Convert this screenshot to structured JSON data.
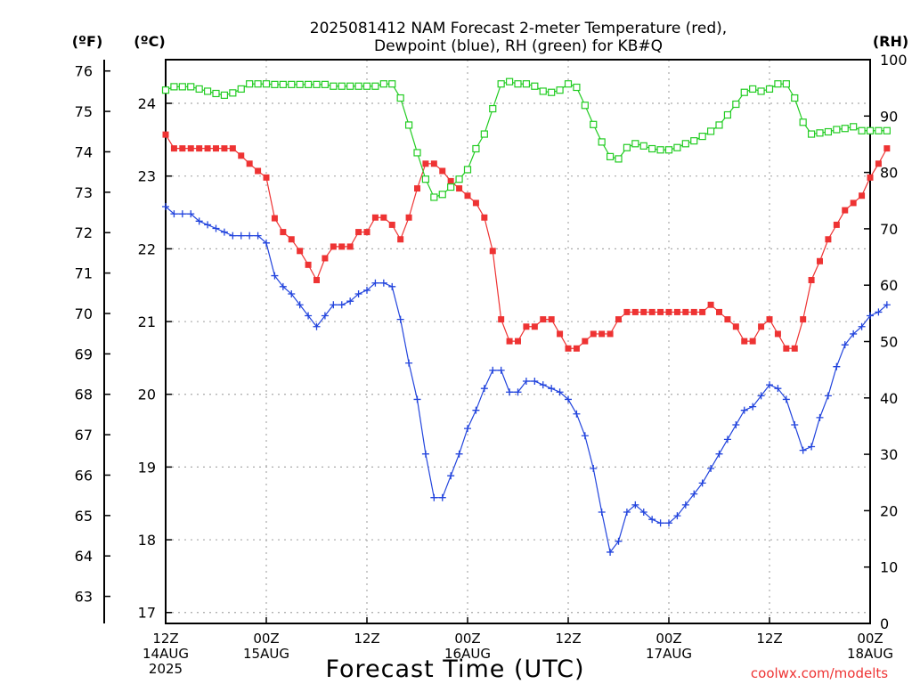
{
  "chart_data": {
    "type": "line",
    "title_line1": "2025081412 NAM Forecast 2-meter Temperature (red),",
    "title_line2": "Dewpoint (blue), RH (green) for KB#Q",
    "xlabel": "Forecast Time (UTC)",
    "credit": "coolwx.com/modelts",
    "x_unit": "forecast hour",
    "xlim": [
      0,
      84
    ],
    "x_ticks": [
      {
        "hour": 0,
        "line1": "12Z",
        "line2": "14AUG",
        "line3": "2025"
      },
      {
        "hour": 12,
        "line1": "00Z",
        "line2": "15AUG",
        "line3": ""
      },
      {
        "hour": 24,
        "line1": "12Z",
        "line2": "",
        "line3": ""
      },
      {
        "hour": 36,
        "line1": "00Z",
        "line2": "16AUG",
        "line3": ""
      },
      {
        "hour": 48,
        "line1": "12Z",
        "line2": "",
        "line3": ""
      },
      {
        "hour": 60,
        "line1": "00Z",
        "line2": "17AUG",
        "line3": ""
      },
      {
        "hour": 72,
        "line1": "12Z",
        "line2": "",
        "line3": ""
      },
      {
        "hour": 84,
        "line1": "00Z",
        "line2": "18AUG",
        "line3": ""
      }
    ],
    "axes": {
      "fahrenheit": {
        "label": "(ºF)",
        "ticks": [
          63,
          64,
          65,
          66,
          67,
          68,
          69,
          70,
          71,
          72,
          73,
          74,
          75,
          76
        ]
      },
      "celsius": {
        "label": "(ºC)",
        "ylim": [
          16.85,
          24.6
        ],
        "ticks": [
          17,
          18,
          19,
          20,
          21,
          22,
          23,
          24
        ]
      },
      "rh": {
        "label": "(RH)",
        "ylim": [
          0,
          100
        ],
        "ticks": [
          0,
          10,
          20,
          30,
          40,
          50,
          60,
          70,
          80,
          90,
          100
        ]
      }
    },
    "grid": true,
    "series": [
      {
        "name": "Temperature",
        "color": "#ee3333",
        "marker": "filled-square",
        "axis": "celsius",
        "values": [
          [
            0,
            23.57
          ],
          [
            1,
            23.38
          ],
          [
            2,
            23.38
          ],
          [
            3,
            23.38
          ],
          [
            4,
            23.38
          ],
          [
            5,
            23.38
          ],
          [
            6,
            23.38
          ],
          [
            7,
            23.38
          ],
          [
            8,
            23.38
          ],
          [
            9,
            23.28
          ],
          [
            10,
            23.17
          ],
          [
            11,
            23.07
          ],
          [
            12,
            22.98
          ],
          [
            13,
            22.42
          ],
          [
            14,
            22.23
          ],
          [
            15,
            22.13
          ],
          [
            16,
            21.97
          ],
          [
            17,
            21.78
          ],
          [
            18,
            21.57
          ],
          [
            19,
            21.87
          ],
          [
            20,
            22.03
          ],
          [
            21,
            22.03
          ],
          [
            22,
            22.03
          ],
          [
            23,
            22.23
          ],
          [
            24,
            22.23
          ],
          [
            25,
            22.43
          ],
          [
            26,
            22.43
          ],
          [
            27,
            22.33
          ],
          [
            28,
            22.13
          ],
          [
            29,
            22.43
          ],
          [
            30,
            22.83
          ],
          [
            31,
            23.17
          ],
          [
            32,
            23.17
          ],
          [
            33,
            23.07
          ],
          [
            34,
            22.93
          ],
          [
            35,
            22.83
          ],
          [
            36,
            22.73
          ],
          [
            37,
            22.63
          ],
          [
            38,
            22.43
          ],
          [
            39,
            21.97
          ],
          [
            40,
            21.03
          ],
          [
            41,
            20.73
          ],
          [
            42,
            20.73
          ],
          [
            43,
            20.93
          ],
          [
            44,
            20.93
          ],
          [
            45,
            21.03
          ],
          [
            46,
            21.03
          ],
          [
            47,
            20.83
          ],
          [
            48,
            20.63
          ],
          [
            49,
            20.63
          ],
          [
            50,
            20.73
          ],
          [
            51,
            20.83
          ],
          [
            52,
            20.83
          ],
          [
            53,
            20.83
          ],
          [
            54,
            21.03
          ],
          [
            55,
            21.13
          ],
          [
            56,
            21.13
          ],
          [
            57,
            21.13
          ],
          [
            58,
            21.13
          ],
          [
            59,
            21.13
          ],
          [
            60,
            21.13
          ],
          [
            61,
            21.13
          ],
          [
            62,
            21.13
          ],
          [
            63,
            21.13
          ],
          [
            64,
            21.13
          ],
          [
            65,
            21.23
          ],
          [
            66,
            21.13
          ],
          [
            67,
            21.03
          ],
          [
            68,
            20.93
          ],
          [
            69,
            20.73
          ],
          [
            70,
            20.73
          ],
          [
            71,
            20.93
          ],
          [
            72,
            21.03
          ],
          [
            73,
            20.83
          ],
          [
            74,
            20.63
          ],
          [
            75,
            20.63
          ],
          [
            76,
            21.03
          ],
          [
            77,
            21.57
          ],
          [
            78,
            21.83
          ],
          [
            79,
            22.13
          ],
          [
            80,
            22.33
          ],
          [
            81,
            22.53
          ],
          [
            82,
            22.63
          ],
          [
            83,
            22.73
          ],
          [
            84,
            22.98
          ],
          [
            85,
            23.17
          ],
          [
            86,
            23.38
          ]
        ]
      },
      {
        "name": "Dewpoint",
        "color": "#2244dd",
        "marker": "plus",
        "axis": "celsius",
        "values": [
          [
            0,
            22.58
          ],
          [
            1,
            22.48
          ],
          [
            2,
            22.48
          ],
          [
            3,
            22.48
          ],
          [
            4,
            22.38
          ],
          [
            5,
            22.33
          ],
          [
            6,
            22.28
          ],
          [
            7,
            22.23
          ],
          [
            8,
            22.18
          ],
          [
            9,
            22.18
          ],
          [
            10,
            22.18
          ],
          [
            11,
            22.18
          ],
          [
            12,
            22.08
          ],
          [
            13,
            21.63
          ],
          [
            14,
            21.48
          ],
          [
            15,
            21.38
          ],
          [
            16,
            21.23
          ],
          [
            17,
            21.08
          ],
          [
            18,
            20.93
          ],
          [
            19,
            21.08
          ],
          [
            20,
            21.23
          ],
          [
            21,
            21.23
          ],
          [
            22,
            21.28
          ],
          [
            23,
            21.38
          ],
          [
            24,
            21.43
          ],
          [
            25,
            21.53
          ],
          [
            26,
            21.53
          ],
          [
            27,
            21.48
          ],
          [
            28,
            21.03
          ],
          [
            29,
            20.43
          ],
          [
            30,
            19.93
          ],
          [
            31,
            19.18
          ],
          [
            32,
            18.58
          ],
          [
            33,
            18.58
          ],
          [
            34,
            18.88
          ],
          [
            35,
            19.18
          ],
          [
            36,
            19.53
          ],
          [
            37,
            19.78
          ],
          [
            38,
            20.08
          ],
          [
            39,
            20.33
          ],
          [
            40,
            20.33
          ],
          [
            41,
            20.03
          ],
          [
            42,
            20.03
          ],
          [
            43,
            20.18
          ],
          [
            44,
            20.18
          ],
          [
            45,
            20.13
          ],
          [
            46,
            20.08
          ],
          [
            47,
            20.03
          ],
          [
            48,
            19.93
          ],
          [
            49,
            19.73
          ],
          [
            50,
            19.43
          ],
          [
            51,
            18.98
          ],
          [
            52,
            18.38
          ],
          [
            53,
            17.83
          ],
          [
            54,
            17.98
          ],
          [
            55,
            18.38
          ],
          [
            56,
            18.48
          ],
          [
            57,
            18.38
          ],
          [
            58,
            18.28
          ],
          [
            59,
            18.23
          ],
          [
            60,
            18.23
          ],
          [
            61,
            18.33
          ],
          [
            62,
            18.48
          ],
          [
            63,
            18.63
          ],
          [
            64,
            18.78
          ],
          [
            65,
            18.98
          ],
          [
            66,
            19.18
          ],
          [
            67,
            19.38
          ],
          [
            68,
            19.58
          ],
          [
            69,
            19.78
          ],
          [
            70,
            19.83
          ],
          [
            71,
            19.98
          ],
          [
            72,
            20.13
          ],
          [
            73,
            20.08
          ],
          [
            74,
            19.93
          ],
          [
            75,
            19.58
          ],
          [
            76,
            19.23
          ],
          [
            77,
            19.28
          ],
          [
            78,
            19.68
          ],
          [
            79,
            19.98
          ],
          [
            80,
            20.38
          ],
          [
            81,
            20.68
          ],
          [
            82,
            20.83
          ],
          [
            83,
            20.93
          ],
          [
            84,
            21.08
          ],
          [
            85,
            21.13
          ],
          [
            86,
            21.23
          ]
        ]
      },
      {
        "name": "RH",
        "color": "#22cc22",
        "marker": "open-square",
        "axis": "rh",
        "values": [
          [
            0,
            94.6
          ],
          [
            1,
            95.2
          ],
          [
            2,
            95.2
          ],
          [
            3,
            95.2
          ],
          [
            4,
            94.8
          ],
          [
            5,
            94.4
          ],
          [
            6,
            94.0
          ],
          [
            7,
            93.7
          ],
          [
            8,
            94.1
          ],
          [
            9,
            94.8
          ],
          [
            10,
            95.7
          ],
          [
            11,
            95.7
          ],
          [
            12,
            95.7
          ],
          [
            13,
            95.6
          ],
          [
            14,
            95.6
          ],
          [
            15,
            95.6
          ],
          [
            16,
            95.6
          ],
          [
            17,
            95.6
          ],
          [
            18,
            95.6
          ],
          [
            19,
            95.6
          ],
          [
            20,
            95.3
          ],
          [
            21,
            95.3
          ],
          [
            22,
            95.3
          ],
          [
            23,
            95.3
          ],
          [
            24,
            95.3
          ],
          [
            25,
            95.3
          ],
          [
            26,
            95.7
          ],
          [
            27,
            95.7
          ],
          [
            28,
            93.2
          ],
          [
            29,
            88.4
          ],
          [
            30,
            83.5
          ],
          [
            31,
            78.8
          ],
          [
            32,
            75.6
          ],
          [
            33,
            76.1
          ],
          [
            34,
            77.4
          ],
          [
            35,
            78.8
          ],
          [
            36,
            80.5
          ],
          [
            37,
            84.2
          ],
          [
            38,
            86.8
          ],
          [
            39,
            91.3
          ],
          [
            40,
            95.7
          ],
          [
            41,
            96.1
          ],
          [
            42,
            95.7
          ],
          [
            43,
            95.7
          ],
          [
            44,
            95.3
          ],
          [
            45,
            94.4
          ],
          [
            46,
            94.2
          ],
          [
            47,
            94.6
          ],
          [
            48,
            95.7
          ],
          [
            49,
            95.1
          ],
          [
            50,
            91.9
          ],
          [
            51,
            88.5
          ],
          [
            52,
            85.4
          ],
          [
            53,
            82.8
          ],
          [
            54,
            82.4
          ],
          [
            55,
            84.4
          ],
          [
            56,
            85.1
          ],
          [
            57,
            84.7
          ],
          [
            58,
            84.2
          ],
          [
            59,
            84.0
          ],
          [
            60,
            84.0
          ],
          [
            61,
            84.4
          ],
          [
            62,
            85.1
          ],
          [
            63,
            85.6
          ],
          [
            64,
            86.4
          ],
          [
            65,
            87.3
          ],
          [
            66,
            88.4
          ],
          [
            67,
            90.2
          ],
          [
            68,
            92.1
          ],
          [
            69,
            94.2
          ],
          [
            70,
            94.8
          ],
          [
            71,
            94.4
          ],
          [
            72,
            94.8
          ],
          [
            73,
            95.7
          ],
          [
            74,
            95.7
          ],
          [
            75,
            93.2
          ],
          [
            76,
            88.9
          ],
          [
            77,
            86.8
          ],
          [
            78,
            87.0
          ],
          [
            79,
            87.2
          ],
          [
            80,
            87.6
          ],
          [
            81,
            87.8
          ],
          [
            82,
            88.1
          ],
          [
            83,
            87.4
          ],
          [
            84,
            87.4
          ],
          [
            85,
            87.4
          ],
          [
            86,
            87.4
          ]
        ]
      }
    ]
  }
}
